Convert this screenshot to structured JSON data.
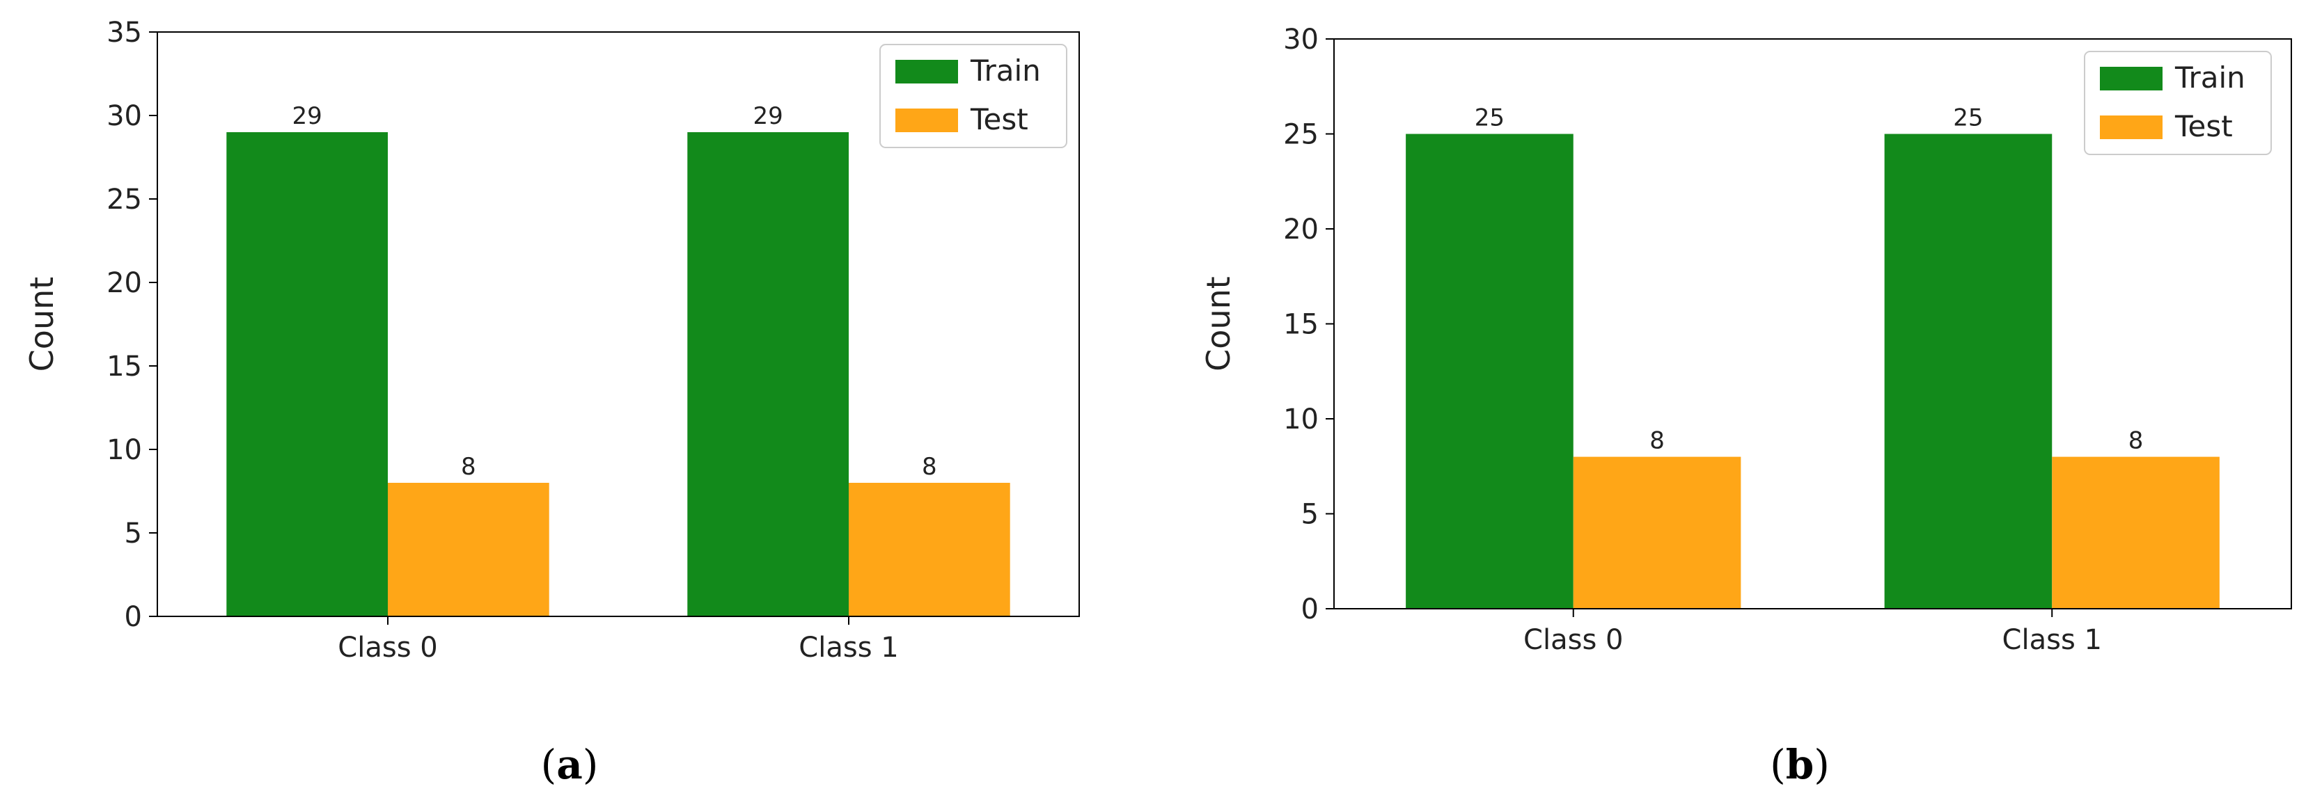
{
  "chart_data": [
    {
      "type": "bar",
      "categories": [
        "Class 0",
        "Class 1"
      ],
      "series": [
        {
          "name": "Train",
          "values": [
            29,
            29
          ],
          "color": "#128a1b"
        },
        {
          "name": "Test",
          "values": [
            8,
            8
          ],
          "color": "#ffa617"
        }
      ],
      "xlabel": "",
      "ylabel": "Count",
      "ylim": [
        0,
        35
      ],
      "yticks": [
        0,
        5,
        10,
        15,
        20,
        25,
        30,
        35
      ],
      "data_labels": true,
      "grid": false,
      "legend_position": "top-right"
    },
    {
      "type": "bar",
      "categories": [
        "Class 0",
        "Class 1"
      ],
      "series": [
        {
          "name": "Train",
          "values": [
            25,
            25
          ],
          "color": "#128a1b"
        },
        {
          "name": "Test",
          "values": [
            8,
            8
          ],
          "color": "#ffa617"
        }
      ],
      "xlabel": "",
      "ylabel": "Count",
      "ylim": [
        0,
        30
      ],
      "yticks": [
        0,
        5,
        10,
        15,
        20,
        25,
        30
      ],
      "data_labels": true,
      "grid": false,
      "legend_position": "top-right"
    }
  ],
  "captions": [
    {
      "open": "(",
      "letter": "a",
      "close": ")"
    },
    {
      "open": "(",
      "letter": "b",
      "close": ")"
    }
  ]
}
